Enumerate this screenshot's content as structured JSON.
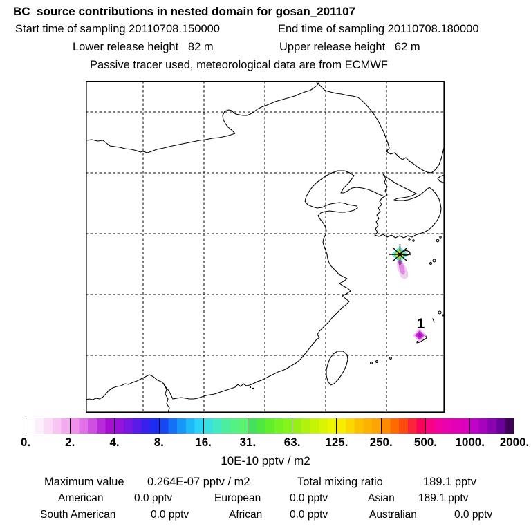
{
  "header": {
    "title": "BC  source contributions in nested domain for gosan_201107",
    "start_time": "Start time of sampling 20110708.150000",
    "end_time": "End time of sampling 20110708.180000",
    "lower_release": "Lower release height   82 m",
    "upper_release": "Upper release height   62 m",
    "tracer_note": "Passive tracer used, meteorological data are from ECMWF"
  },
  "map": {
    "marker_label": "1",
    "source_marker": "asterisk-star at sampling site (Gosan, Jeju)",
    "plume_colors": [
      "#cc44d4",
      "#dd7ce2",
      "#f0c6ee"
    ],
    "blob1_colors": [
      "#f2bcf0",
      "#cf33d8",
      "#a812c0"
    ]
  },
  "colorbar": {
    "unit": "10E-10 pptv / m2",
    "tick_labels": [
      "0.",
      "2.",
      "4.",
      "8.",
      "16.",
      "31.",
      "63.",
      "125.",
      "250.",
      "500.",
      "1000.",
      "2000."
    ],
    "segments": [
      [
        "#ffffff",
        "#fdeefc",
        "#fbdcf8",
        "#f7c4f4",
        "#f3abef"
      ],
      [
        "#ef91ea",
        "#e271e8",
        "#cf4fe0",
        "#b92bd9",
        "#a90fd3"
      ],
      [
        "#9812dc",
        "#7a16e2",
        "#5a1ae8",
        "#3a20ee",
        "#1c2cf1"
      ],
      [
        "#1548f3",
        "#1470f6",
        "#1597f7",
        "#1fb8f8",
        "#2bd2f8"
      ],
      [
        "#38e0e2",
        "#43e9c2",
        "#4deda0",
        "#54f184",
        "#59f371"
      ],
      [
        "#42e25b",
        "#4fe83e",
        "#63ee2b",
        "#75f221",
        "#84f51b"
      ],
      [
        "#97ef15",
        "#aff20e",
        "#c6f407",
        "#daf402",
        "#ecf400"
      ],
      [
        "#f8ed00",
        "#fbd800",
        "#fcc200",
        "#fdb101",
        "#fda302"
      ],
      [
        "#fd8a00",
        "#fe6a00",
        "#fe4a0e",
        "#fb2438",
        "#f9025c"
      ],
      [
        "#f70384",
        "#f202a0",
        "#ea01b0",
        "#e301b8",
        "#dd01bd"
      ],
      [
        "#bf03c7",
        "#a602c0",
        "#8a02b2",
        "#6b019c",
        "#420158"
      ]
    ]
  },
  "stats": {
    "max_label": "Maximum value",
    "max_value": "0.264E-07 pptv / m2",
    "total_label": "Total mixing ratio",
    "total_value": "189.1 pptv",
    "regions": [
      {
        "name": "American",
        "value": "0.0 pptv"
      },
      {
        "name": "European",
        "value": "0.0 pptv"
      },
      {
        "name": "Asian",
        "value": "189.1 pptv"
      },
      {
        "name": "South American",
        "value": "0.0 pptv"
      },
      {
        "name": "African",
        "value": "0.0 pptv"
      },
      {
        "name": "Australian",
        "value": "0.0 pptv"
      }
    ]
  }
}
